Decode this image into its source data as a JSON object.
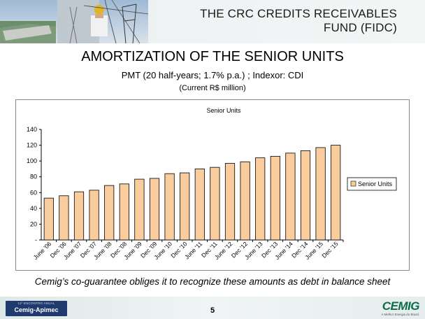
{
  "header": {
    "title_line1": "THE CRC CREDITS RECEIVABLES",
    "title_line2": "FUND (FIDC)"
  },
  "main_title": "AMORTIZATION OF THE SENIOR UNITS",
  "subtitle": "PMT (20 half-years; 1.7% p.a.) ; Indexor: CDI",
  "unit_note": "(Current R$ million)",
  "footnote": "Cemig’s co-guarantee obliges it to recognize these amounts as debt in balance sheet",
  "footer": {
    "event_top": "11º ENCONTRO ANUAL",
    "event_name": "Cemig-Apimec",
    "page_number": "5",
    "logo_word": "CEMIG",
    "logo_tagline": "A Melhor Energia do Brasil."
  },
  "colors": {
    "bar_fill": "#f9cc9d",
    "bar_stroke": "#000000",
    "logo_green": "#0e6b4c",
    "event_blue": "#1e3a6e"
  },
  "chart_data": {
    "type": "bar",
    "title": "Senior Units",
    "categories": [
      "June '06",
      "Dec '06",
      "June '07",
      "Dec '07",
      "June '08",
      "Dec '08",
      "June '09",
      "Dec '09",
      "June '10",
      "Dec '10",
      "June '11",
      "Dec '11",
      "June '12",
      "Dec '12",
      "June '13",
      "Dec '13",
      "June '14",
      "Dec '14",
      "June '15",
      "Dec '15"
    ],
    "series": [
      {
        "name": "Senior Units",
        "values": [
          53,
          56,
          61,
          63,
          69,
          71,
          77,
          78,
          84,
          85,
          90,
          92,
          97,
          99,
          104,
          106,
          110,
          113,
          117,
          120
        ]
      }
    ],
    "ylim": [
      0,
      140
    ],
    "y_ticks": [
      {
        "value": 0,
        "label": "-"
      },
      {
        "value": 20,
        "label": "20"
      },
      {
        "value": 40,
        "label": "40"
      },
      {
        "value": 60,
        "label": "60"
      },
      {
        "value": 80,
        "label": "80"
      },
      {
        "value": 100,
        "label": "100"
      },
      {
        "value": 120,
        "label": "120"
      },
      {
        "value": 140,
        "label": "140"
      }
    ],
    "grid": false,
    "legend_position": "right"
  }
}
